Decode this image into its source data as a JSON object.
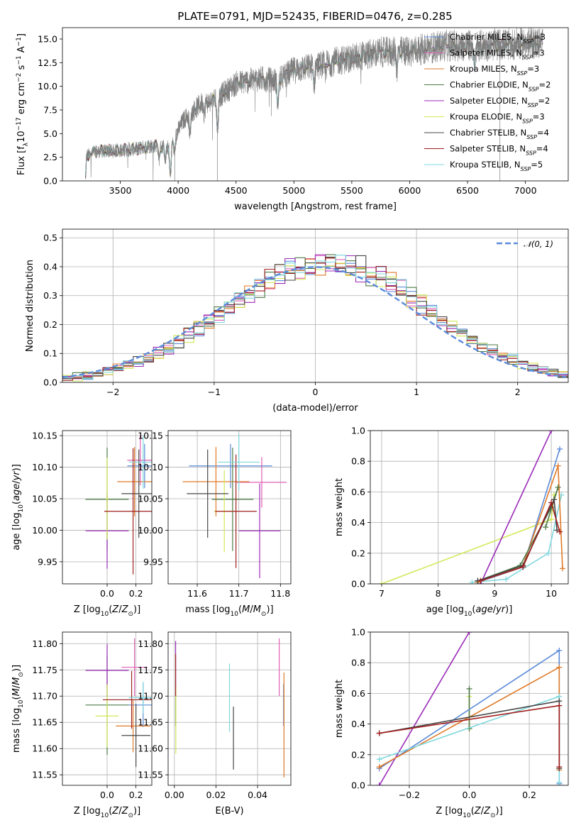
{
  "colors": {
    "cm": "#5b8bd9",
    "sm": "#e05fb5",
    "km": "#e07a28",
    "ce": "#4d7a46",
    "se": "#9b2cb8",
    "ke": "#d3e858",
    "cs": "#474747",
    "ss": "#a01e1e",
    "ks": "#7fd8de"
  },
  "chart_data": [
    {
      "id": "spectrum",
      "type": "line",
      "title": "PLATE=0791, MJD=52435, FIBERID=0476, z=0.285",
      "xlabel": "wavelength [Angstrom, rest frame]",
      "ylabel": "Flux [f",
      "xlim": [
        3000,
        7370
      ],
      "ylim": [
        0,
        16.2
      ],
      "xticks": [
        "3500",
        "4000",
        "4500",
        "5000",
        "5500",
        "6000",
        "6500",
        "7000"
      ],
      "yticks": [
        "0.0",
        "2.5",
        "5.0",
        "7.5",
        "10.0",
        "12.5",
        "15.0"
      ],
      "grid": false,
      "legend_position": "top-right",
      "continuum_knots": [
        [
          3200,
          0
        ],
        [
          3210,
          2.7
        ],
        [
          3300,
          3.1
        ],
        [
          3500,
          3.2
        ],
        [
          3650,
          3.4
        ],
        [
          3800,
          3.8
        ],
        [
          3930,
          3.5
        ],
        [
          3970,
          4.7
        ],
        [
          4050,
          6.5
        ],
        [
          4200,
          8.2
        ],
        [
          4300,
          8.4
        ],
        [
          4500,
          10.3
        ],
        [
          4700,
          10.8
        ],
        [
          4861,
          10.6
        ],
        [
          5000,
          11.7
        ],
        [
          5200,
          12.2
        ],
        [
          5500,
          13.0
        ],
        [
          5750,
          13.6
        ],
        [
          6000,
          13.7
        ],
        [
          6300,
          14.3
        ],
        [
          6563,
          14.3
        ],
        [
          6800,
          14.4
        ],
        [
          7000,
          14.5
        ],
        [
          7150,
          14.6
        ]
      ],
      "series": [
        {
          "key": "cm",
          "label": "Chabrier MILES, N",
          "nssp": "=3"
        },
        {
          "key": "sm",
          "label": "Salpeter MILES, N",
          "nssp": "=3"
        },
        {
          "key": "km",
          "label": "Kroupa MILES, N",
          "nssp": "=3"
        },
        {
          "key": "ce",
          "label": "Chabrier ELODIE, N",
          "nssp": "=2"
        },
        {
          "key": "se",
          "label": "Salpeter ELODIE, N",
          "nssp": "=2"
        },
        {
          "key": "ke",
          "label": "Kroupa ELODIE, N",
          "nssp": "=3"
        },
        {
          "key": "cs",
          "label": "Chabrier STELIB, N",
          "nssp": "=4"
        },
        {
          "key": "ss",
          "label": "Salpeter STELIB, N",
          "nssp": "=4"
        },
        {
          "key": "ks",
          "label": "Kroupa STELIB, N",
          "nssp": "=5"
        }
      ]
    },
    {
      "id": "residuals",
      "type": "step",
      "xlabel": "(data-model)/error",
      "ylabel": "Normed distribution",
      "xlim": [
        -2.5,
        2.5
      ],
      "ylim": [
        0,
        0.53
      ],
      "xticks": [
        "−2",
        "−1",
        "0",
        "1",
        "2"
      ],
      "yticks": [
        "0.0",
        "0.1",
        "0.2",
        "0.3",
        "0.4",
        "0.5"
      ],
      "grid": true,
      "legend_position": "top-right",
      "legend_label": "𝒩(0, 1)",
      "bin_width": 0.1,
      "bin_start": -2.5
    },
    {
      "id": "age-vs-Z",
      "type": "errorbar",
      "xlabel": "Z [log",
      "ylabel": "age",
      "xlim": [
        -0.31,
        0.31
      ],
      "ylim": [
        9.915,
        10.158
      ],
      "xticks": [
        "0.0",
        "0.2"
      ],
      "yticks": [
        "9.95",
        "10.00",
        "10.05",
        "10.10",
        "10.15"
      ],
      "grid": true,
      "points": [
        {
          "key": "cm",
          "x": 0.26,
          "xerr": 0.12,
          "y": 10.102,
          "yerr": 0.035
        },
        {
          "key": "sm",
          "x": 0.23,
          "xerr": 0.09,
          "y": 10.111,
          "yerr": 0.04
        },
        {
          "key": "km",
          "x": 0.19,
          "xerr": 0.12,
          "y": 10.077,
          "yerr": 0.055
        },
        {
          "key": "ce",
          "x": 0.0,
          "xerr": 0.15,
          "y": 10.049,
          "yerr": 0.082
        },
        {
          "key": "se",
          "x": 0.0,
          "xerr": 0.15,
          "y": 9.999,
          "yerr": 0.06
        },
        {
          "key": "ke",
          "x": 0.0,
          "xerr": 0.01,
          "y": 10.05,
          "yerr": 0.065
        },
        {
          "key": "cs",
          "x": 0.22,
          "xerr": 0.12,
          "y": 10.058,
          "yerr": 0.07
        },
        {
          "key": "ss",
          "x": 0.18,
          "xerr": 0.2,
          "y": 10.03,
          "yerr": 0.1
        },
        {
          "key": "ks",
          "x": 0.25,
          "xerr": 0.1,
          "y": 10.108,
          "yerr": 0.042
        }
      ]
    },
    {
      "id": "age-vs-mass",
      "type": "errorbar",
      "xlabel": "mass [log",
      "ylabel": "",
      "xlim": [
        11.53,
        11.825
      ],
      "ylim": [
        9.915,
        10.158
      ],
      "xticks": [
        "11.6",
        "11.7",
        "11.8"
      ],
      "yticks": [
        "9.95",
        "10.00",
        "10.05",
        "10.10",
        "10.15"
      ],
      "grid": true,
      "points": [
        {
          "key": "cm",
          "x": 11.68,
          "xerr": 0.1,
          "y": 10.102,
          "yerr": 0.035
        },
        {
          "key": "sm",
          "x": 11.755,
          "xerr": 0.06,
          "y": 10.076,
          "yerr": 0.04
        },
        {
          "key": "km",
          "x": 11.645,
          "xerr": 0.08,
          "y": 10.077,
          "yerr": 0.055
        },
        {
          "key": "ce",
          "x": 11.685,
          "xerr": 0.05,
          "y": 10.049,
          "yerr": 0.082
        },
        {
          "key": "se",
          "x": 11.75,
          "xerr": 0.05,
          "y": 9.999,
          "yerr": 0.075
        },
        {
          "key": "ke",
          "x": 11.665,
          "xerr": 0.025,
          "y": 10.03,
          "yerr": 0.065
        },
        {
          "key": "cs",
          "x": 11.625,
          "xerr": 0.05,
          "y": 10.058,
          "yerr": 0.07
        },
        {
          "key": "ss",
          "x": 11.693,
          "xerr": 0.05,
          "y": 10.03,
          "yerr": 0.09
        },
        {
          "key": "ks",
          "x": 11.7,
          "xerr": 0.05,
          "y": 10.108,
          "yerr": 0.045
        }
      ]
    },
    {
      "id": "weight-vs-age",
      "type": "line",
      "xlabel": "age",
      "ylabel": "mass weight",
      "xlim": [
        6.8,
        10.3
      ],
      "ylim": [
        0,
        1
      ],
      "xticks": [
        "7",
        "8",
        "9",
        "10"
      ],
      "yticks": [
        "0.0",
        "0.2",
        "0.4",
        "0.6",
        "0.8",
        "1.0"
      ],
      "grid": true,
      "series": [
        {
          "key": "ke",
          "points": [
            [
              7.0,
              0.0
            ],
            [
              10.0,
              0.42
            ],
            [
              10.05,
              0.58
            ]
          ]
        },
        {
          "key": "se",
          "points": [
            [
              8.75,
              0.0
            ],
            [
              10.0,
              1.0
            ]
          ]
        },
        {
          "key": "ks",
          "points": [
            [
              8.6,
              0.01
            ],
            [
              9.2,
              0.03
            ],
            [
              9.95,
              0.2
            ],
            [
              10.18,
              0.58
            ]
          ]
        },
        {
          "key": "cm",
          "points": [
            [
              8.7,
              0.01
            ],
            [
              9.5,
              0.11
            ],
            [
              10.15,
              0.88
            ]
          ]
        },
        {
          "key": "km",
          "points": [
            [
              8.7,
              0.01
            ],
            [
              9.5,
              0.12
            ],
            [
              10.12,
              0.77
            ],
            [
              10.2,
              0.1
            ]
          ]
        },
        {
          "key": "ce",
          "points": [
            [
              8.7,
              0.02
            ],
            [
              9.45,
              0.12
            ],
            [
              10.0,
              0.5
            ],
            [
              10.12,
              0.63
            ],
            [
              9.9,
              0.37
            ]
          ]
        },
        {
          "key": "cs",
          "points": [
            [
              8.7,
              0.02
            ],
            [
              9.5,
              0.12
            ],
            [
              10.05,
              0.55
            ],
            [
              10.1,
              0.35
            ]
          ]
        },
        {
          "key": "ss",
          "points": [
            [
              8.75,
              0.02
            ],
            [
              9.5,
              0.11
            ],
            [
              10.0,
              0.53
            ],
            [
              10.15,
              0.34
            ]
          ]
        }
      ]
    },
    {
      "id": "mass-vs-Z",
      "type": "errorbar",
      "xlabel": "Z [log",
      "ylabel": "mass",
      "xlim": [
        -0.31,
        0.31
      ],
      "ylim": [
        11.53,
        11.822
      ],
      "xticks": [
        "0.0",
        "0.2"
      ],
      "yticks": [
        "11.55",
        "11.60",
        "11.65",
        "11.70",
        "11.75",
        "11.80"
      ],
      "grid": true,
      "points": [
        {
          "key": "cm",
          "x": 0.25,
          "xerr": 0.1,
          "y": 11.683,
          "yerr": 0.042
        },
        {
          "key": "sm",
          "x": 0.19,
          "xerr": 0.09,
          "y": 11.755,
          "yerr": 0.055
        },
        {
          "key": "km",
          "x": 0.18,
          "xerr": 0.12,
          "y": 11.643,
          "yerr": 0.05
        },
        {
          "key": "ce",
          "x": 0.0,
          "xerr": 0.15,
          "y": 11.683,
          "yerr": 0.095
        },
        {
          "key": "se",
          "x": 0.0,
          "xerr": 0.15,
          "y": 11.749,
          "yerr": 0.05
        },
        {
          "key": "ke",
          "x": 0.0,
          "xerr": 0.08,
          "y": 11.662,
          "yerr": 0.06
        },
        {
          "key": "cs",
          "x": 0.2,
          "xerr": 0.1,
          "y": 11.625,
          "yerr": 0.06
        },
        {
          "key": "ss",
          "x": 0.17,
          "xerr": 0.2,
          "y": 11.693,
          "yerr": 0.055
        },
        {
          "key": "ks",
          "x": 0.25,
          "xerr": 0.1,
          "y": 11.697,
          "yerr": 0.03
        }
      ]
    },
    {
      "id": "mass-vs-EBV",
      "type": "errorbar",
      "xlabel": "E(B-V)",
      "ylabel": "",
      "xlim": [
        -0.003,
        0.056
      ],
      "ylim": [
        11.53,
        11.822
      ],
      "xticks": [
        "0.00",
        "0.02",
        "0.04"
      ],
      "yticks": [
        "11.55",
        "11.60",
        "11.65",
        "11.70",
        "11.75",
        "11.80"
      ],
      "grid": true,
      "points": [
        {
          "key": "cm",
          "x": 0.0525,
          "xerr": 0,
          "y": 11.683,
          "yerr": 0.04
        },
        {
          "key": "sm",
          "x": 0.0504,
          "xerr": 0,
          "y": 11.755,
          "yerr": 0.055
        },
        {
          "key": "km",
          "x": 0.0527,
          "xerr": 0,
          "y": 11.645,
          "yerr": 0.1
        },
        {
          "key": "ce",
          "x": 0.0006,
          "xerr": 0,
          "y": 11.683,
          "yerr": 0.04
        },
        {
          "key": "se",
          "x": 0.0006,
          "xerr": 0,
          "y": 11.76,
          "yerr": 0.045
        },
        {
          "key": "ke",
          "x": 0.0007,
          "xerr": 0,
          "y": 11.655,
          "yerr": 0.065
        },
        {
          "key": "cs",
          "x": 0.0284,
          "xerr": 0,
          "y": 11.62,
          "yerr": 0.06
        },
        {
          "key": "ss",
          "x": 0.0006,
          "xerr": 0,
          "y": 11.74,
          "yerr": 0.04
        },
        {
          "key": "ks",
          "x": 0.0265,
          "xerr": 0,
          "y": 11.697,
          "yerr": 0.065
        }
      ]
    },
    {
      "id": "weight-vs-Z",
      "type": "line",
      "xlabel": "Z [log",
      "ylabel": "mass weight",
      "xlim": [
        -0.33,
        0.33
      ],
      "ylim": [
        0,
        1
      ],
      "xticks": [
        "−0.2",
        "0.0",
        "0.2"
      ],
      "yticks": [
        "0.0",
        "0.2",
        "0.4",
        "0.6",
        "0.8",
        "1.0"
      ],
      "grid": true,
      "series": [
        {
          "key": "se",
          "points": [
            [
              -0.3,
              0.0
            ],
            [
              0.0,
              1.0
            ]
          ]
        },
        {
          "key": "ke",
          "points": [
            [
              0.0,
              0.37
            ],
            [
              0.0,
              0.58
            ]
          ]
        },
        {
          "key": "ce",
          "points": [
            [
              0.0,
              0.63
            ],
            [
              0.0,
              0.37
            ]
          ]
        },
        {
          "key": "cm",
          "points": [
            [
              -0.3,
              0.11
            ],
            [
              0.3,
              0.88
            ],
            [
              0.3,
              0.01
            ]
          ]
        },
        {
          "key": "km",
          "points": [
            [
              -0.3,
              0.12
            ],
            [
              0.3,
              0.77
            ],
            [
              0.3,
              0.1
            ]
          ]
        },
        {
          "key": "ks",
          "points": [
            [
              -0.3,
              0.17
            ],
            [
              0.3,
              0.58
            ],
            [
              0.3,
              0.02
            ]
          ]
        },
        {
          "key": "cs",
          "points": [
            [
              -0.3,
              0.34
            ],
            [
              0.3,
              0.55
            ],
            [
              0.3,
              0.11
            ]
          ]
        },
        {
          "key": "ss",
          "points": [
            [
              -0.3,
              0.34
            ],
            [
              0.3,
              0.52
            ],
            [
              0.3,
              0.12
            ]
          ]
        }
      ]
    }
  ]
}
